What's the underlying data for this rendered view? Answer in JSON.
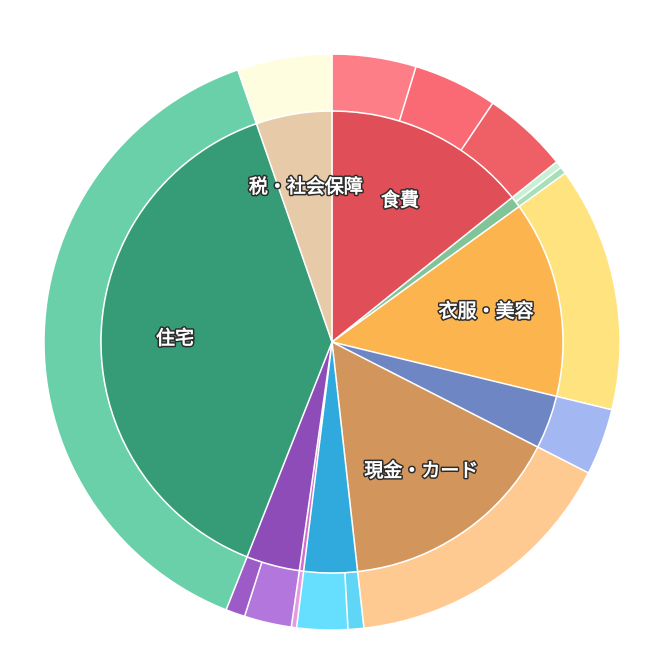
{
  "chart_data": {
    "type": "pie",
    "subtype": "sunburst",
    "inner": [
      {
        "label": "食費",
        "value": 14.5,
        "color": "#e04f57"
      },
      {
        "label": "",
        "value": 0.8,
        "color": "#80c498"
      },
      {
        "label": "衣服・美容",
        "value": 14.0,
        "color": "#fbb44e"
      },
      {
        "label": "",
        "value": 3.8,
        "color": "#6e86c4"
      },
      {
        "label": "現金・カード",
        "value": 16.0,
        "color": "#d2955c"
      },
      {
        "label": "",
        "value": 3.8,
        "color": "#30a9dc"
      },
      {
        "label": "",
        "value": 0.3,
        "color": "#d06ecf"
      },
      {
        "label": "",
        "value": 3.8,
        "color": "#8e4cb8"
      },
      {
        "label": "住宅",
        "value": 39.4,
        "color": "#369b77"
      },
      {
        "label": "税・社会保障",
        "value": 5.4,
        "color": "#e7caa8"
      }
    ],
    "outer": [
      {
        "parent": 0,
        "value": 4.8,
        "color": "#fd7e87"
      },
      {
        "parent": 0,
        "value": 4.8,
        "color": "#f96a75"
      },
      {
        "parent": 0,
        "value": 4.9,
        "color": "#ef5f66"
      },
      {
        "parent": 1,
        "value": 0.4,
        "color": "#c8f0d4"
      },
      {
        "parent": 1,
        "value": 0.4,
        "color": "#a6dfb8"
      },
      {
        "parent": 2,
        "value": 14.0,
        "color": "#ffe37f"
      },
      {
        "parent": 3,
        "value": 3.8,
        "color": "#a3b8f2"
      },
      {
        "parent": 4,
        "value": 16.0,
        "color": "#ffca92"
      },
      {
        "parent": 5,
        "value": 0.9,
        "color": "#60d6f7"
      },
      {
        "parent": 5,
        "value": 2.9,
        "color": "#66dfff"
      },
      {
        "parent": 6,
        "value": 0.3,
        "color": "#e49ae2"
      },
      {
        "parent": 7,
        "value": 2.7,
        "color": "#b276dc"
      },
      {
        "parent": 7,
        "value": 1.1,
        "color": "#9d5bc7"
      },
      {
        "parent": 8,
        "value": 39.4,
        "color": "#69d0a9"
      },
      {
        "parent": 9,
        "value": 5.4,
        "color": "#fffde0"
      }
    ],
    "title": "",
    "legend": "none"
  }
}
